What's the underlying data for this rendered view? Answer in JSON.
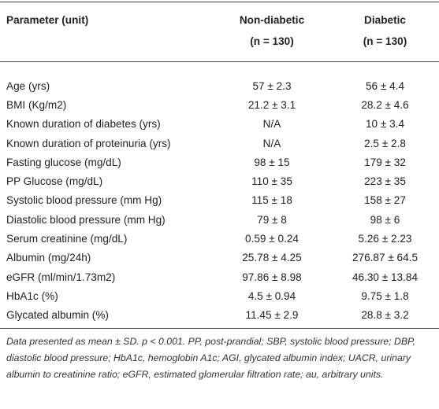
{
  "table": {
    "columns": [
      {
        "label": "Parameter (unit)"
      },
      {
        "label": "Non-diabetic",
        "subtitle": "(n = 130)"
      },
      {
        "label": "Diabetic",
        "subtitle": "(n = 130)"
      }
    ],
    "rows": [
      [
        "Age (yrs)",
        "57 ± 2.3",
        "56 ± 4.4"
      ],
      [
        "BMI (Kg/m2)",
        "21.2 ± 3.1",
        "28.2 ± 4.6"
      ],
      [
        "Known duration of diabetes (yrs)",
        "N/A",
        "10 ± 3.4"
      ],
      [
        "Known duration of proteinuria (yrs)",
        "N/A",
        "2.5 ± 2.8"
      ],
      [
        "Fasting glucose (mg/dL)",
        "98 ± 15",
        "179 ± 32"
      ],
      [
        "PP Glucose (mg/dL)",
        "110 ± 35",
        "223 ± 35"
      ],
      [
        "Systolic blood pressure (mm Hg)",
        "115 ± 18",
        "158 ± 27"
      ],
      [
        "Diastolic blood pressure (mm Hg)",
        "79 ± 8",
        "98 ± 6"
      ],
      [
        "Serum creatinine (mg/dL)",
        "0.59 ± 0.24",
        "5.26 ± 2.23"
      ],
      [
        "Albumin (mg/24h)",
        "25.78 ± 4.25",
        "276.87 ± 64.5"
      ],
      [
        "eGFR (ml/min/1.73m2)",
        "97.86 ± 8.98",
        "46.30 ± 13.84"
      ],
      [
        "HbA1c (%)",
        "4.5 ± 0.94",
        "9.75 ± 1.8"
      ],
      [
        "Glycated albumin (%)",
        "11.45 ± 2.9",
        "28.8 ± 3.2"
      ]
    ]
  },
  "footnote": "Data presented as mean ± SD. p < 0.001. PP, post-prandial; SBP, systolic blood pressure; DBP, diastolic blood pressure; HbA1c, hemoglobin A1c; AGI, glycated albumin index; UACR, urinary albumin to creatinine ratio; eGFR, estimated glomerular filtration rate; au, arbitrary units."
}
